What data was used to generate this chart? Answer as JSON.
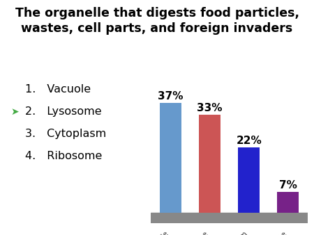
{
  "title_line1": "The organelle that digests food particles,",
  "title_line2": "wastes, cell parts, and foreign invaders",
  "categories": [
    "Vacuole",
    "Lysosome",
    "Cytoplasm",
    "Ribosome"
  ],
  "values": [
    37,
    33,
    22,
    7
  ],
  "labels": [
    "37%",
    "33%",
    "22%",
    "7%"
  ],
  "bar_colors": [
    "#6699CC",
    "#CC5555",
    "#2222CC",
    "#772288"
  ],
  "list_items": [
    "Vacuole",
    "Lysosome",
    "Cytoplasm",
    "Ribosome"
  ],
  "background_color": "#ffffff",
  "floor_color": "#888888",
  "title_fontsize": 12.5,
  "label_fontsize": 11,
  "tick_fontsize": 7.5,
  "list_fontsize": 11.5,
  "arrow_color": "#44AA44"
}
